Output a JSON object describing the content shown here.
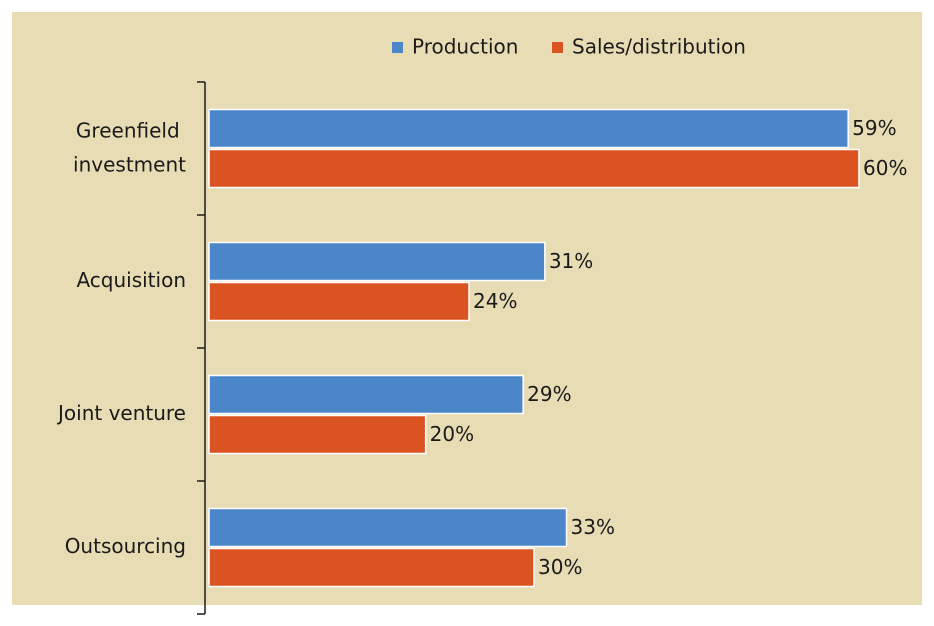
{
  "chart_data": {
    "type": "bar",
    "orientation": "horizontal",
    "categories": [
      "Greenfield investment",
      "Acquisition",
      "Joint venture",
      "Outsourcing"
    ],
    "series": [
      {
        "name": "Production",
        "color": "#4a86c8",
        "values": [
          59,
          31,
          29,
          33
        ],
        "value_labels": [
          "59%",
          "31%",
          "29%",
          "33%"
        ]
      },
      {
        "name": "Sales/distribution",
        "color": "#dc5322",
        "values": [
          60,
          24,
          20,
          30
        ],
        "value_labels": [
          "60%",
          "24%",
          "20%",
          "30%"
        ]
      }
    ],
    "xlim": [
      0,
      60
    ],
    "legend": "top"
  }
}
